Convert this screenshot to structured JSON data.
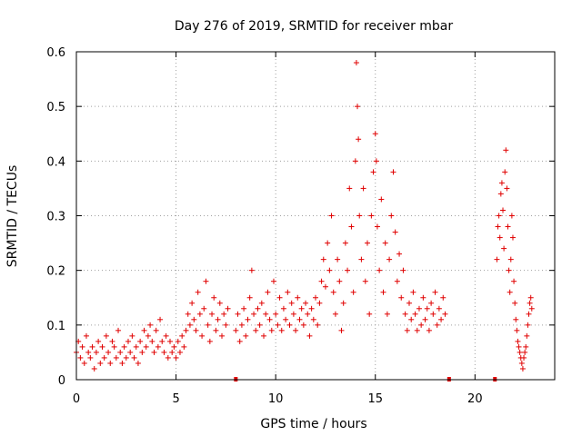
{
  "chart_data": {
    "type": "scatter",
    "title": "Day 276 of 2019, SRMTID for receiver mbar",
    "xlabel": "GPS time / hours",
    "ylabel": "SRMTID / TECUs",
    "xlim": [
      0,
      24
    ],
    "ylim": [
      0,
      0.6
    ],
    "x_ticks": [
      {
        "value": 0,
        "label": "0"
      },
      {
        "value": 5,
        "label": "5"
      },
      {
        "value": 10,
        "label": "10"
      },
      {
        "value": 15,
        "label": "15"
      },
      {
        "value": 20,
        "label": "20"
      }
    ],
    "y_ticks": [
      {
        "value": 0,
        "label": "0"
      },
      {
        "value": 0.1,
        "label": "0.1"
      },
      {
        "value": 0.2,
        "label": "0.2"
      },
      {
        "value": 0.3,
        "label": "0.3"
      },
      {
        "value": 0.4,
        "label": "0.4"
      },
      {
        "value": 0.5,
        "label": "0.5"
      },
      {
        "value": 0.6,
        "label": "0.6"
      }
    ],
    "grid": true,
    "marker": "+",
    "color": "#e00000",
    "gap_markers_x": [
      8.0,
      18.7,
      21.0
    ],
    "series": [
      {
        "name": "SRMTID",
        "points": [
          [
            0.0,
            0.05
          ],
          [
            0.1,
            0.07
          ],
          [
            0.2,
            0.04
          ],
          [
            0.3,
            0.06
          ],
          [
            0.4,
            0.03
          ],
          [
            0.5,
            0.08
          ],
          [
            0.6,
            0.05
          ],
          [
            0.7,
            0.04
          ],
          [
            0.8,
            0.06
          ],
          [
            0.9,
            0.02
          ],
          [
            1.0,
            0.05
          ],
          [
            1.1,
            0.07
          ],
          [
            1.2,
            0.03
          ],
          [
            1.3,
            0.06
          ],
          [
            1.4,
            0.04
          ],
          [
            1.5,
            0.08
          ],
          [
            1.6,
            0.05
          ],
          [
            1.7,
            0.03
          ],
          [
            1.8,
            0.07
          ],
          [
            1.9,
            0.06
          ],
          [
            2.0,
            0.04
          ],
          [
            2.1,
            0.09
          ],
          [
            2.2,
            0.05
          ],
          [
            2.3,
            0.03
          ],
          [
            2.4,
            0.06
          ],
          [
            2.5,
            0.04
          ],
          [
            2.6,
            0.07
          ],
          [
            2.7,
            0.05
          ],
          [
            2.8,
            0.08
          ],
          [
            2.9,
            0.04
          ],
          [
            3.0,
            0.06
          ],
          [
            3.1,
            0.03
          ],
          [
            3.2,
            0.07
          ],
          [
            3.3,
            0.05
          ],
          [
            3.4,
            0.09
          ],
          [
            3.5,
            0.06
          ],
          [
            3.6,
            0.08
          ],
          [
            3.7,
            0.1
          ],
          [
            3.8,
            0.07
          ],
          [
            3.9,
            0.05
          ],
          [
            4.0,
            0.09
          ],
          [
            4.1,
            0.06
          ],
          [
            4.2,
            0.11
          ],
          [
            4.3,
            0.07
          ],
          [
            4.4,
            0.05
          ],
          [
            4.5,
            0.08
          ],
          [
            4.6,
            0.04
          ],
          [
            4.7,
            0.07
          ],
          [
            4.8,
            0.05
          ],
          [
            4.9,
            0.06
          ],
          [
            5.0,
            0.04
          ],
          [
            5.1,
            0.07
          ],
          [
            5.2,
            0.05
          ],
          [
            5.3,
            0.08
          ],
          [
            5.4,
            0.06
          ],
          [
            5.5,
            0.09
          ],
          [
            5.6,
            0.12
          ],
          [
            5.7,
            0.1
          ],
          [
            5.8,
            0.14
          ],
          [
            5.9,
            0.11
          ],
          [
            6.0,
            0.09
          ],
          [
            6.1,
            0.16
          ],
          [
            6.2,
            0.12
          ],
          [
            6.3,
            0.08
          ],
          [
            6.4,
            0.13
          ],
          [
            6.5,
            0.18
          ],
          [
            6.6,
            0.1
          ],
          [
            6.7,
            0.07
          ],
          [
            6.8,
            0.12
          ],
          [
            6.9,
            0.15
          ],
          [
            7.0,
            0.09
          ],
          [
            7.1,
            0.11
          ],
          [
            7.2,
            0.14
          ],
          [
            7.3,
            0.08
          ],
          [
            7.4,
            0.12
          ],
          [
            7.5,
            0.1
          ],
          [
            7.6,
            0.13
          ],
          [
            8.0,
            0.09
          ],
          [
            8.1,
            0.12
          ],
          [
            8.2,
            0.07
          ],
          [
            8.3,
            0.1
          ],
          [
            8.4,
            0.13
          ],
          [
            8.5,
            0.08
          ],
          [
            8.6,
            0.11
          ],
          [
            8.7,
            0.15
          ],
          [
            8.8,
            0.2
          ],
          [
            8.9,
            0.12
          ],
          [
            9.0,
            0.09
          ],
          [
            9.1,
            0.13
          ],
          [
            9.2,
            0.1
          ],
          [
            9.3,
            0.14
          ],
          [
            9.4,
            0.08
          ],
          [
            9.5,
            0.12
          ],
          [
            9.6,
            0.16
          ],
          [
            9.7,
            0.11
          ],
          [
            9.8,
            0.09
          ],
          [
            9.9,
            0.18
          ],
          [
            10.0,
            0.12
          ],
          [
            10.1,
            0.1
          ],
          [
            10.2,
            0.15
          ],
          [
            10.3,
            0.09
          ],
          [
            10.4,
            0.13
          ],
          [
            10.5,
            0.11
          ],
          [
            10.6,
            0.16
          ],
          [
            10.7,
            0.1
          ],
          [
            10.8,
            0.14
          ],
          [
            10.9,
            0.12
          ],
          [
            11.0,
            0.09
          ],
          [
            11.1,
            0.15
          ],
          [
            11.2,
            0.11
          ],
          [
            11.3,
            0.13
          ],
          [
            11.4,
            0.1
          ],
          [
            11.5,
            0.14
          ],
          [
            11.6,
            0.12
          ],
          [
            11.7,
            0.08
          ],
          [
            11.8,
            0.13
          ],
          [
            11.9,
            0.11
          ],
          [
            12.0,
            0.15
          ],
          [
            12.1,
            0.1
          ],
          [
            12.2,
            0.14
          ],
          [
            12.3,
            0.18
          ],
          [
            12.4,
            0.22
          ],
          [
            12.5,
            0.17
          ],
          [
            12.6,
            0.25
          ],
          [
            12.7,
            0.2
          ],
          [
            12.8,
            0.3
          ],
          [
            12.9,
            0.16
          ],
          [
            13.0,
            0.12
          ],
          [
            13.1,
            0.22
          ],
          [
            13.2,
            0.18
          ],
          [
            13.3,
            0.09
          ],
          [
            13.4,
            0.14
          ],
          [
            13.5,
            0.25
          ],
          [
            13.6,
            0.2
          ],
          [
            13.7,
            0.35
          ],
          [
            13.8,
            0.28
          ],
          [
            13.9,
            0.16
          ],
          [
            14.0,
            0.4
          ],
          [
            14.05,
            0.58
          ],
          [
            14.1,
            0.5
          ],
          [
            14.15,
            0.44
          ],
          [
            14.2,
            0.3
          ],
          [
            14.3,
            0.22
          ],
          [
            14.4,
            0.35
          ],
          [
            14.5,
            0.18
          ],
          [
            14.6,
            0.25
          ],
          [
            14.7,
            0.12
          ],
          [
            14.8,
            0.3
          ],
          [
            14.9,
            0.38
          ],
          [
            15.0,
            0.45
          ],
          [
            15.05,
            0.4
          ],
          [
            15.1,
            0.28
          ],
          [
            15.2,
            0.2
          ],
          [
            15.3,
            0.33
          ],
          [
            15.4,
            0.16
          ],
          [
            15.5,
            0.25
          ],
          [
            15.6,
            0.12
          ],
          [
            15.7,
            0.22
          ],
          [
            15.8,
            0.3
          ],
          [
            15.9,
            0.38
          ],
          [
            16.0,
            0.27
          ],
          [
            16.1,
            0.18
          ],
          [
            16.2,
            0.23
          ],
          [
            16.3,
            0.15
          ],
          [
            16.4,
            0.2
          ],
          [
            16.5,
            0.12
          ],
          [
            16.6,
            0.09
          ],
          [
            16.7,
            0.14
          ],
          [
            16.8,
            0.11
          ],
          [
            16.9,
            0.16
          ],
          [
            17.0,
            0.12
          ],
          [
            17.1,
            0.09
          ],
          [
            17.2,
            0.13
          ],
          [
            17.3,
            0.1
          ],
          [
            17.4,
            0.15
          ],
          [
            17.5,
            0.11
          ],
          [
            17.6,
            0.13
          ],
          [
            17.7,
            0.09
          ],
          [
            17.8,
            0.14
          ],
          [
            17.9,
            0.12
          ],
          [
            18.0,
            0.16
          ],
          [
            18.1,
            0.1
          ],
          [
            18.2,
            0.13
          ],
          [
            18.3,
            0.11
          ],
          [
            18.4,
            0.15
          ],
          [
            18.5,
            0.12
          ],
          [
            21.1,
            0.22
          ],
          [
            21.15,
            0.28
          ],
          [
            21.2,
            0.3
          ],
          [
            21.25,
            0.26
          ],
          [
            21.3,
            0.34
          ],
          [
            21.35,
            0.36
          ],
          [
            21.4,
            0.31
          ],
          [
            21.45,
            0.24
          ],
          [
            21.5,
            0.38
          ],
          [
            21.55,
            0.42
          ],
          [
            21.6,
            0.35
          ],
          [
            21.65,
            0.28
          ],
          [
            21.7,
            0.2
          ],
          [
            21.75,
            0.16
          ],
          [
            21.8,
            0.22
          ],
          [
            21.85,
            0.3
          ],
          [
            21.9,
            0.26
          ],
          [
            21.95,
            0.18
          ],
          [
            22.0,
            0.14
          ],
          [
            22.05,
            0.11
          ],
          [
            22.1,
            0.09
          ],
          [
            22.15,
            0.07
          ],
          [
            22.2,
            0.06
          ],
          [
            22.25,
            0.05
          ],
          [
            22.3,
            0.04
          ],
          [
            22.35,
            0.03
          ],
          [
            22.4,
            0.02
          ],
          [
            22.45,
            0.04
          ],
          [
            22.5,
            0.05
          ],
          [
            22.55,
            0.06
          ],
          [
            22.6,
            0.08
          ],
          [
            22.65,
            0.1
          ],
          [
            22.7,
            0.12
          ],
          [
            22.75,
            0.14
          ],
          [
            22.8,
            0.15
          ],
          [
            22.85,
            0.13
          ]
        ]
      }
    ]
  }
}
